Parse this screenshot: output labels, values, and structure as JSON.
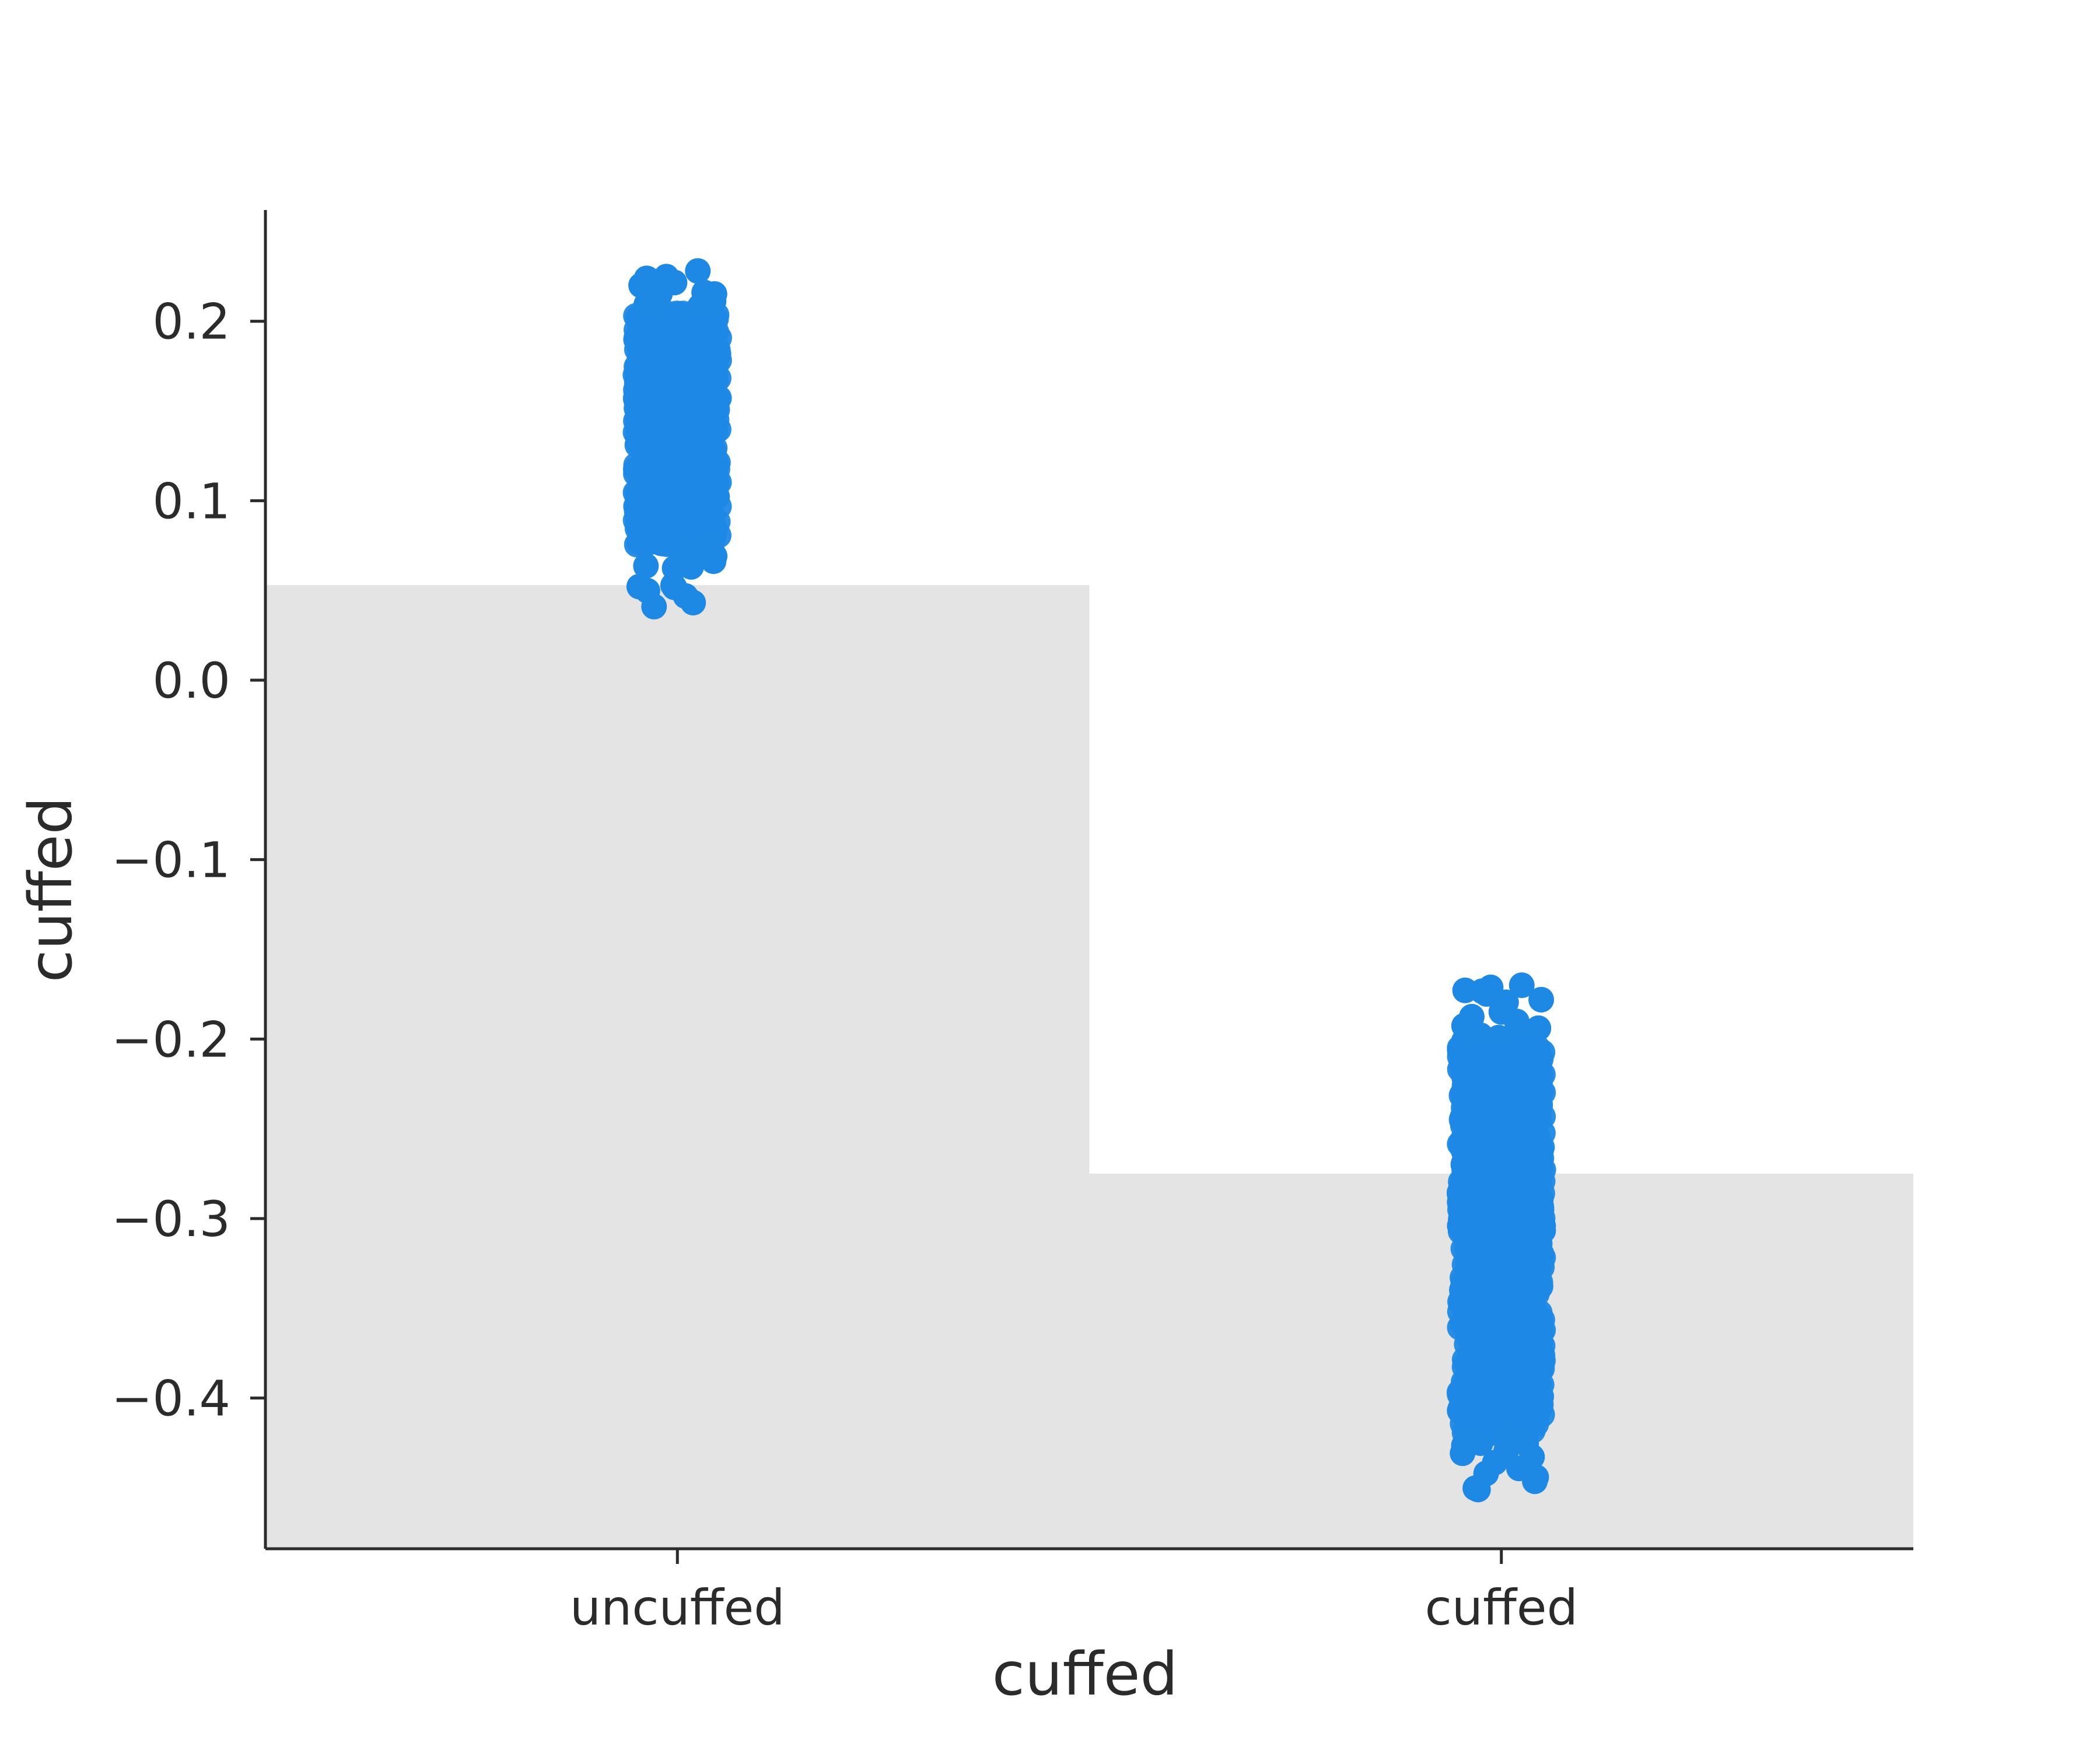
{
  "chart_data": {
    "type": "bar",
    "overlay": "strip",
    "title": "",
    "xlabel": "cuffed",
    "ylabel": "cuffed",
    "categories": [
      "uncuffed",
      "cuffed"
    ],
    "values": [
      0.053,
      -0.275
    ],
    "points": [
      {
        "category": "uncuffed",
        "min": 0.041,
        "max": 0.228,
        "dense_low": 0.075,
        "dense_high": 0.205,
        "n": 800
      },
      {
        "category": "cuffed",
        "min": -0.451,
        "max": -0.17,
        "dense_low": -0.42,
        "dense_high": -0.2,
        "n": 1200
      }
    ],
    "ylim": [
      -0.484,
      0.262
    ],
    "yticks": [
      0.2,
      0.1,
      0.0,
      -0.1,
      -0.2,
      -0.3,
      -0.4
    ],
    "ytick_labels": [
      "0.2",
      "0.1",
      "0.0",
      "−0.1",
      "−0.2",
      "−0.3",
      "−0.4"
    ],
    "grid": false,
    "legend": "none",
    "colors": {
      "bar": "#e4e4e4",
      "points": "#1e88e5",
      "axis": "#2b2b2b",
      "text": "#2b2b2b"
    }
  }
}
